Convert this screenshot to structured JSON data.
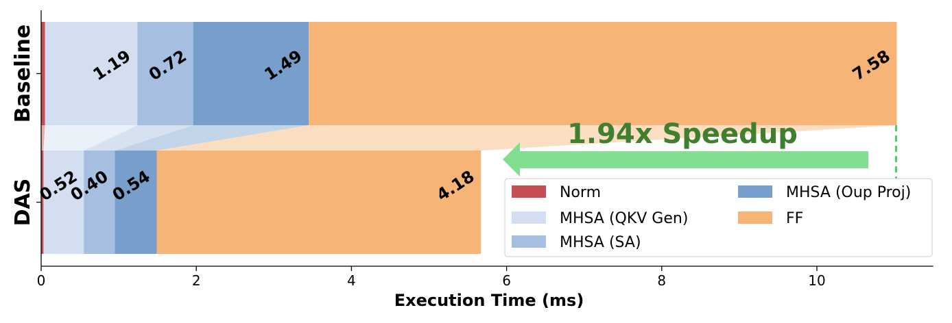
{
  "chart_data": {
    "type": "bar",
    "orientation": "horizontal",
    "stacked": true,
    "categories": [
      "Baseline",
      "DAS"
    ],
    "xlabel": "Execution Time (ms)",
    "xlim": [
      0,
      11.5
    ],
    "xticks": [
      0,
      2,
      4,
      6,
      8,
      10
    ],
    "series": [
      {
        "name": "Norm",
        "color": "#c44e52",
        "values": [
          0.05,
          0.03
        ]
      },
      {
        "name": "MHSA (QKV Gen)",
        "color": "#d3dff0",
        "values": [
          1.19,
          0.52
        ],
        "labels": [
          "1.19",
          "0.52"
        ]
      },
      {
        "name": "MHSA (SA)",
        "color": "#a6bedf",
        "values": [
          0.72,
          0.4
        ],
        "labels": [
          "0.72",
          "0.40"
        ]
      },
      {
        "name": "MHSA (Oup Proj)",
        "color": "#789fcb",
        "values": [
          1.49,
          0.54
        ],
        "labels": [
          "1.49",
          "0.54"
        ]
      },
      {
        "name": "FF",
        "color": "#f6b477",
        "values": [
          7.58,
          4.18
        ],
        "labels": [
          "7.58",
          "4.18"
        ]
      }
    ],
    "annotation": {
      "text": "1.94x Speedup",
      "text_color": "#3f7f2f",
      "arrow_color": "#80e090",
      "line_color": "#4ccf63"
    },
    "legend": {
      "position": "bottom-right",
      "columns": 2
    }
  }
}
